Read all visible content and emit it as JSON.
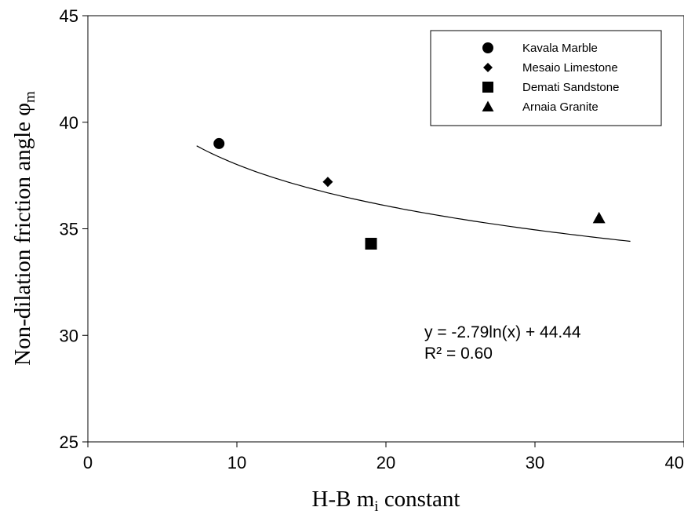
{
  "chart_data": {
    "type": "scatter",
    "xlabel": {
      "main": "H-B m",
      "sub": "i",
      "rest": " constant"
    },
    "ylabel": {
      "main": "Non-dilation friction angle φ",
      "sub": "m"
    },
    "xlim": [
      0,
      40
    ],
    "ylim": [
      25,
      45
    ],
    "x_ticks": [
      0,
      10,
      20,
      30,
      40
    ],
    "y_ticks": [
      25,
      30,
      35,
      40,
      45
    ],
    "grid": false,
    "legend_position": "top-right",
    "series": [
      {
        "name": "Kavala Marble",
        "marker": "circle",
        "x": [
          8.8
        ],
        "y": [
          39.0
        ]
      },
      {
        "name": "Mesaio Limestone",
        "marker": "diamond",
        "x": [
          16.1
        ],
        "y": [
          37.2
        ]
      },
      {
        "name": "Demati Sandstone",
        "marker": "square",
        "x": [
          19.0
        ],
        "y": [
          34.3
        ]
      },
      {
        "name": "Arnaia Granite",
        "marker": "triangle",
        "x": [
          34.3
        ],
        "y": [
          35.5
        ]
      }
    ],
    "trendline": {
      "type": "logarithmic",
      "a": -2.79,
      "b": 44.44,
      "x_range": [
        7.3,
        36.4
      ],
      "equation": "y = -2.79ln(x) + 44.44",
      "r_squared": "R² = 0.60"
    }
  }
}
